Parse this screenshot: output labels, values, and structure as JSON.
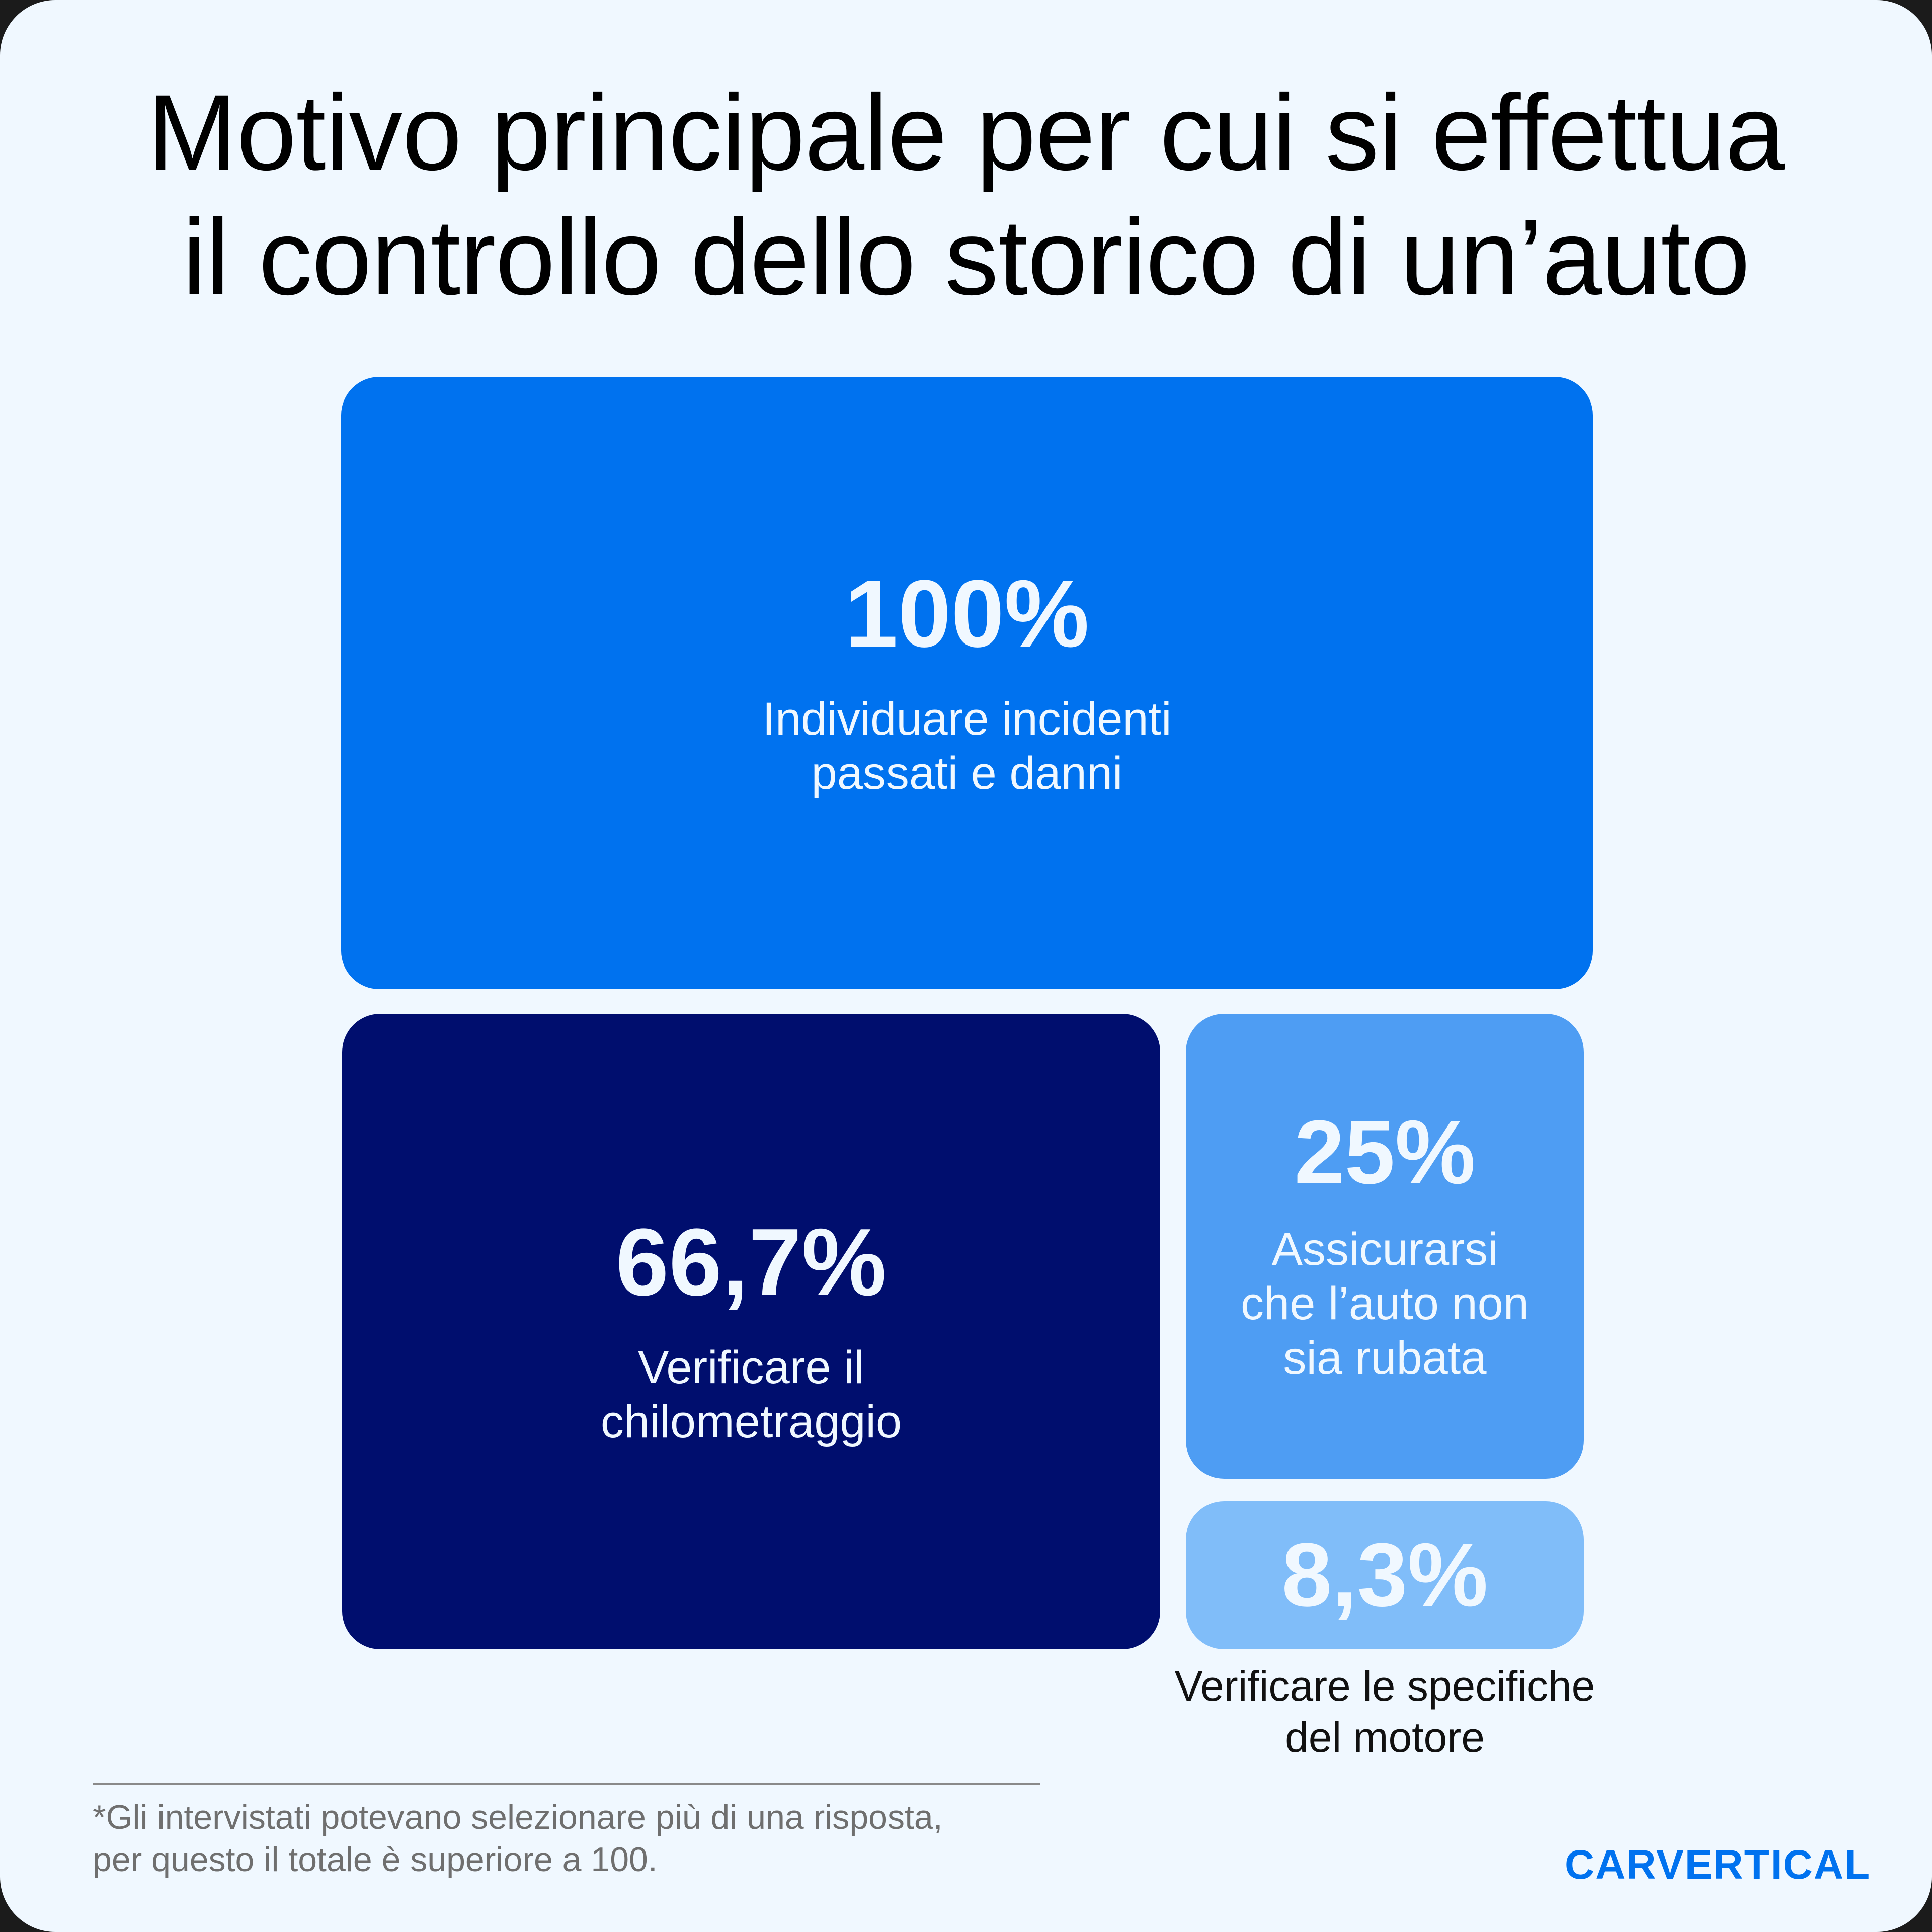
{
  "title": {
    "line1": "Motivo principale per cui si effettua",
    "line2": "il controllo dello storico di un’auto"
  },
  "colors": {
    "background": "#f0f8ff",
    "box_primary": "#0072ef",
    "box_navy": "#000e6e",
    "box_mid": "#4e9df3",
    "box_light": "#80bdf9",
    "brand": "#0072ef"
  },
  "boxes": [
    {
      "value": "100%",
      "label_line1": "Individuare incidenti",
      "label_line2": "passati e danni"
    },
    {
      "value": "66,7%",
      "label_line1": "Verificare il",
      "label_line2": "chilometraggio"
    },
    {
      "value": "25%",
      "label_line1": "Assicurarsi",
      "label_line2": "che l’auto non",
      "label_line3": "sia rubata"
    },
    {
      "value": "8,3%",
      "label_line1": "Verificare le specifiche",
      "label_line2": "del motore"
    }
  ],
  "footnote": {
    "line1": "*Gli intervistati potevano selezionare più di una risposta,",
    "line2": "per questo il totale è superiore a 100."
  },
  "brand": {
    "name": "CARVERTICAL"
  },
  "chart_data": {
    "type": "treemap",
    "title": "Motivo principale per cui si effettua il controllo dello storico di un’auto",
    "categories": [
      "Individuare incidenti passati e danni",
      "Verificare il chilometraggio",
      "Assicurarsi che l’auto non sia rubata",
      "Verificare le specifiche del motore"
    ],
    "values": [
      100,
      66.7,
      25,
      8.3
    ],
    "unit": "%",
    "note": "*Gli intervistati potevano selezionare più di una risposta, per questo il totale è superiore a 100.",
    "legend": "none",
    "grid": false
  }
}
